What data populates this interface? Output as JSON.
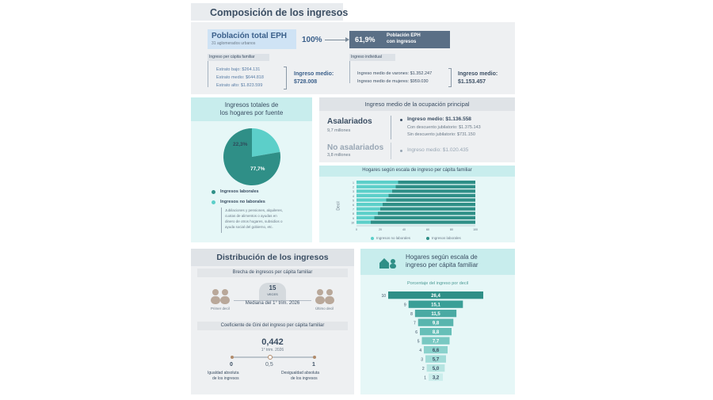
{
  "section1": {
    "title": "Composición de los ingresos",
    "pop_total_title": "Población total EPH",
    "pop_total_sub": "31 aglomerados urbanos",
    "pop_total_pct": "100%",
    "pop_ing_pct": "61,9%",
    "pop_ing_title_1": "Población EPH",
    "pop_ing_title_2": "con ingresos",
    "left_label": "Ingreso per cápita familiar",
    "estratos": [
      "Estrato bajo: $264.131",
      "Estrato medio: $644.818",
      "Estrato alto: $1.823.599"
    ],
    "left_mean_label": "Ingreso medio:",
    "left_mean_value": "$728.008",
    "right_label": "Ingreso individual",
    "sexo": [
      "Ingreso medio de varones: $1.352.247",
      "Ingreso medio de mujeres: $959.030"
    ],
    "right_mean_label": "Ingreso medio:",
    "right_mean_value": "$1.153.457"
  },
  "pie_panel": {
    "title_1": "Ingresos totales de",
    "title_2": "los hogares por fuente",
    "slice_small": "22,3%",
    "slice_big": "77,7%",
    "legend_lab": "Ingresos laborales",
    "legend_nolab": "Ingresos no laborales",
    "note": [
      "Jubilaciones y pensiones, alquileres,",
      "cuotas de alimentos o ayudas en",
      "dinero de otros hogares, subsidios o",
      "ayuda social del gobierno, etc."
    ]
  },
  "ocupacion": {
    "title": "Ingreso medio de la ocupación principal",
    "asal_title": "Asalariados",
    "asal_sub": "9,7 millones",
    "asal_mean": "Ingreso medio: $1.136.558",
    "asal_con": "Con descuento jubilatorio: $1.375.143",
    "asal_sin": "Sin descuento jubilatorio: $731.150",
    "noasal_title": "No asalariados",
    "noasal_sub": "3,8 millones",
    "noasal_mean": "Ingreso medio: $1.020.435"
  },
  "hogares_stack": {
    "title": "Hogares según escala de ingreso per cápita familiar",
    "ylabel": "Decil",
    "legend_nolab": "Ingresos no laborales",
    "legend_lab": "Ingresos laborales",
    "xticks": [
      "0",
      "20",
      "40",
      "60",
      "80",
      "100"
    ],
    "deciles": [
      "1",
      "2",
      "3",
      "4",
      "5",
      "6",
      "7",
      "8",
      "9",
      "10"
    ]
  },
  "distribucion": {
    "title": "Distribución de los ingresos",
    "brecha_label": "Brecha de ingresos per cápita familiar",
    "veces_num": "15",
    "veces_txt": "VECES",
    "mediana": "Mediana del 1° trim. 2026",
    "primer": "Primer decil",
    "ultimo": "Último decil",
    "gini_label": "Coeficiente de Gini del ingreso per cápita familiar",
    "gini_value": "0,442",
    "gini_period": "1° trim. 2026",
    "scale_0": "0",
    "scale_05": "0,5",
    "scale_1": "1",
    "igualdad_1": "Igualdad absoluta",
    "igualdad_2": "de los ingresos",
    "desig_1": "Desigualdad absoluta",
    "desig_2": "de los ingresos"
  },
  "funnel": {
    "title_1": "Hogares según escala de",
    "title_2": "ingreso per cápita familiar",
    "subtitle": "Porcentaje del ingreso por decil"
  },
  "chart_data": [
    {
      "type": "bar",
      "title": "Porcentaje del ingreso por decil",
      "categories": [
        "10",
        "9",
        "8",
        "7",
        "6",
        "5",
        "4",
        "3",
        "2",
        "1"
      ],
      "values": [
        26.4,
        15.1,
        11.5,
        9.8,
        8.8,
        7.7,
        6.6,
        5.7,
        5.0,
        3.2
      ],
      "labels": [
        "26,4",
        "15,1",
        "11,5",
        "9,8",
        "8,8",
        "7,7",
        "6,6",
        "5,7",
        "5,0",
        "3,2"
      ]
    },
    {
      "type": "bar",
      "title": "Hogares según escala de ingreso per cápita familiar",
      "categories": [
        "1",
        "2",
        "3",
        "4",
        "5",
        "6",
        "7",
        "8",
        "9",
        "10"
      ],
      "series": [
        {
          "name": "Ingresos no laborales",
          "values": [
            35,
            33,
            30,
            27,
            25,
            22,
            20,
            18,
            15,
            12
          ]
        },
        {
          "name": "Ingresos laborales",
          "values": [
            65,
            67,
            70,
            73,
            75,
            78,
            80,
            82,
            85,
            88
          ]
        }
      ],
      "ylabel": "Decil",
      "xlim": [
        0,
        100
      ]
    },
    {
      "type": "pie",
      "categories": [
        "Ingresos no laborales",
        "Ingresos laborales"
      ],
      "values": [
        22.3,
        77.7
      ]
    }
  ],
  "colors": {
    "teal_dark": "#2f8f87",
    "teal_mid": "#3fb3aa",
    "teal_light": "#5ccfc9",
    "slate": "#5a6f86",
    "navy": "#3b4e63"
  }
}
